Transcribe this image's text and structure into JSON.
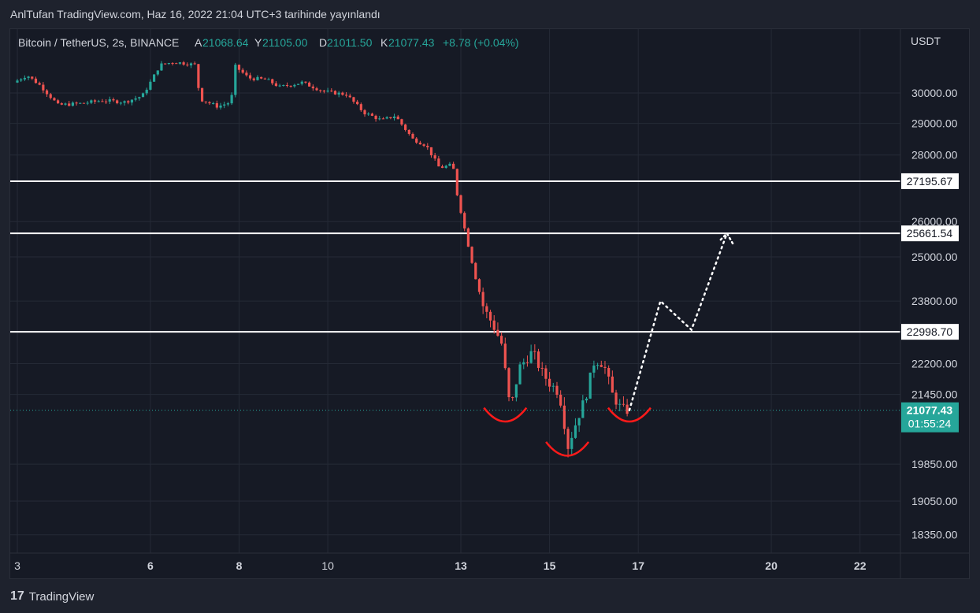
{
  "header": {
    "publication": "AnlTufan TradingView.com, Haz 16, 2022 21:04 UTC+3 tarihinde yayınlandı"
  },
  "legend": {
    "symbol": "Bitcoin / TetherUS, 2s, BINANCE",
    "open_label": "A",
    "open": "21068.64",
    "high_label": "Y",
    "high": "21105.00",
    "low_label": "D",
    "low": "21011.50",
    "close_label": "K",
    "close": "21077.43",
    "change": "+8.78 (+0.04%)"
  },
  "footer": {
    "brand": "TradingView",
    "logo": "tradingview-logo"
  },
  "colors": {
    "up": "#26a69a",
    "down": "#ef5350",
    "background": "#161a25",
    "grid": "#252a36",
    "text": "#d1d4dc",
    "pattern": "#ff1a1a"
  },
  "chart_data": {
    "type": "candlestick",
    "currency": "USDT",
    "y_ticks": [
      30000,
      29000,
      28000,
      26000,
      25000,
      23800,
      22200,
      21450,
      19850,
      19050,
      18350
    ],
    "x_ticks": [
      "3",
      "6",
      "8",
      "10",
      "13",
      "15",
      "17",
      "20",
      "22"
    ],
    "horizontal_levels": [
      27195.67,
      25661.54,
      22998.7
    ],
    "last_price": {
      "value": 21077.43,
      "countdown": "01:55:24"
    },
    "price_path": [
      [
        3.0,
        30350
      ],
      [
        3.3,
        30600
      ],
      [
        3.6,
        30250
      ],
      [
        4.0,
        29600
      ],
      [
        4.5,
        29650
      ],
      [
        5.0,
        29750
      ],
      [
        5.5,
        29700
      ],
      [
        5.9,
        29900
      ],
      [
        6.1,
        30400
      ],
      [
        6.3,
        30950
      ],
      [
        6.6,
        31050
      ],
      [
        6.9,
        31000
      ],
      [
        7.1,
        30950
      ],
      [
        7.2,
        29800
      ],
      [
        7.6,
        29550
      ],
      [
        7.9,
        29700
      ],
      [
        8.0,
        30900
      ],
      [
        8.3,
        30500
      ],
      [
        8.7,
        30450
      ],
      [
        9.0,
        30200
      ],
      [
        9.5,
        30350
      ],
      [
        10.0,
        30050
      ],
      [
        10.5,
        29950
      ],
      [
        10.9,
        29350
      ],
      [
        11.3,
        29100
      ],
      [
        11.6,
        29250
      ],
      [
        12.0,
        28500
      ],
      [
        12.3,
        28300
      ],
      [
        12.6,
        27600
      ],
      [
        12.9,
        27700
      ],
      [
        13.0,
        26800
      ],
      [
        13.2,
        25600
      ],
      [
        13.4,
        24500
      ],
      [
        13.6,
        23600
      ],
      [
        13.8,
        23200
      ],
      [
        14.0,
        22700
      ],
      [
        14.2,
        21050
      ],
      [
        14.4,
        22100
      ],
      [
        14.7,
        22500
      ],
      [
        14.9,
        22000
      ],
      [
        15.1,
        21700
      ],
      [
        15.3,
        21500
      ],
      [
        15.5,
        20250
      ],
      [
        15.7,
        20850
      ],
      [
        15.9,
        21400
      ],
      [
        16.1,
        22300
      ],
      [
        16.3,
        22200
      ],
      [
        16.5,
        21450
      ],
      [
        16.7,
        21100
      ],
      [
        16.8,
        21077
      ]
    ],
    "annotations": {
      "bottom_arcs": [
        {
          "x": 14.0,
          "y": 20950
        },
        {
          "x": 15.4,
          "y": 20170
        },
        {
          "x": 16.8,
          "y": 20950
        }
      ],
      "projection": [
        [
          16.8,
          21077
        ],
        [
          17.5,
          23800
        ],
        [
          18.2,
          23050
        ],
        [
          19.0,
          25661
        ]
      ]
    }
  }
}
